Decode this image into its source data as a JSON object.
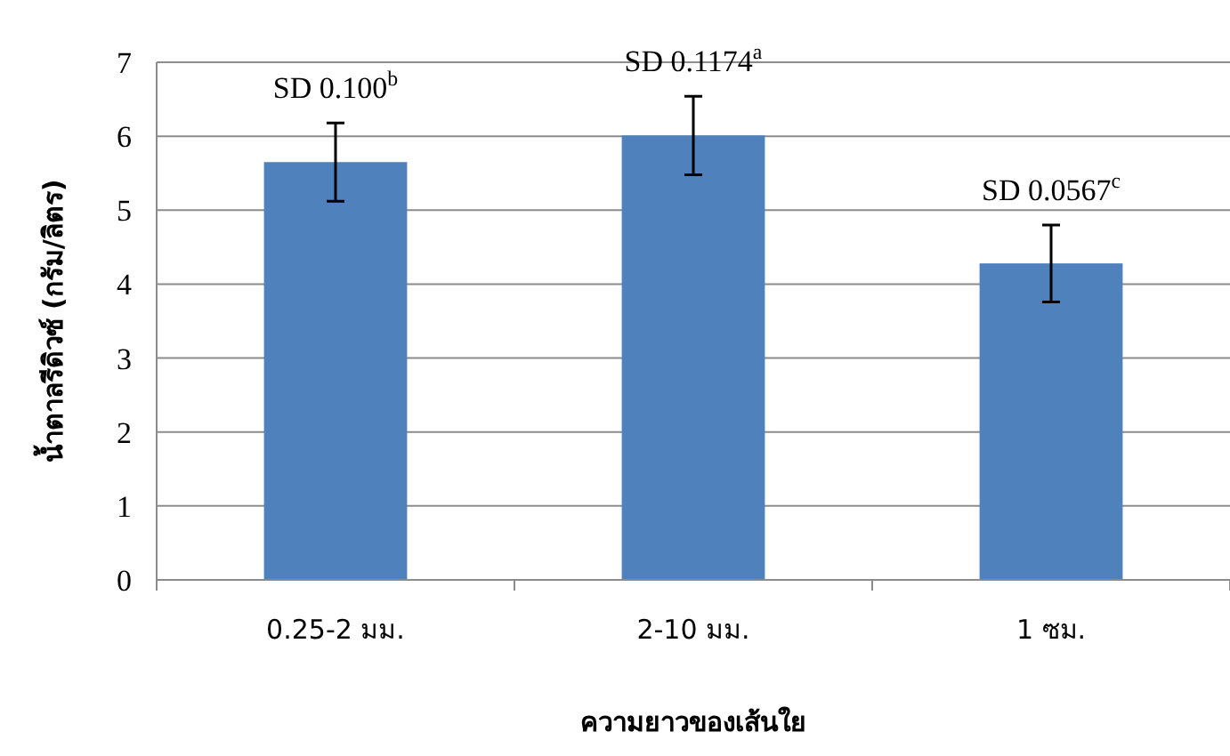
{
  "chart_data": {
    "type": "bar",
    "xlabel": "ความยาวของเส้นใย",
    "ylabel": "น้ำตาลรีดิวซ์ (กรัม/ลิตร)",
    "categories": [
      "0.25-2 มม.",
      "2-10 มม.",
      "1 ซม."
    ],
    "values": [
      5.65,
      6.01,
      4.28
    ],
    "errors": [
      0.53,
      0.53,
      0.52
    ],
    "color": "#4f81bd",
    "ylim": [
      0,
      7
    ],
    "yticks": [
      0,
      1,
      2,
      3,
      4,
      5,
      6,
      7
    ],
    "grid": "y",
    "annotations": [
      {
        "text": "SD 0.100$^{b}$",
        "x": "0.25-2 มม.",
        "y": 6.18
      },
      {
        "text": "SD 0.1174$^{a}$",
        "x": "2-10 มม.",
        "y": 6.54
      },
      {
        "text": "SD 0.0567$^{c}$",
        "x": "1 ซม.",
        "y": 4.8
      }
    ]
  }
}
